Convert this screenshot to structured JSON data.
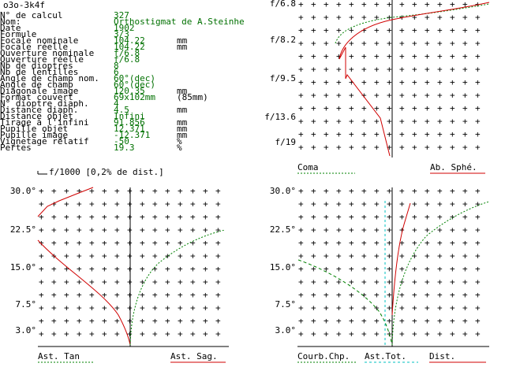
{
  "window_title": "o3o-3k4f",
  "info_rows": [
    {
      "label": "N° de calcul",
      "value": "327",
      "unit": ""
    },
    {
      "label": "Nom:",
      "value": "Orthostigmat de A.Steinhe",
      "unit": ""
    },
    {
      "label": "Date",
      "value": "1902",
      "unit": ""
    },
    {
      "label": "Formule",
      "value": "3/3",
      "unit": ""
    },
    {
      "label": "Focale nominale",
      "value": "104.22",
      "unit": "mm"
    },
    {
      "label": "Focale réelle",
      "value": "104.22",
      "unit": "mm"
    },
    {
      "label": "Ouverture nominale",
      "value": "f/6.8",
      "unit": ""
    },
    {
      "label": "Ouverture réelle",
      "value": "f/6.8",
      "unit": ""
    },
    {
      "label": "Nb de dioptres",
      "value": "8",
      "unit": ""
    },
    {
      "label": "Nb de lentilles",
      "value": "6",
      "unit": ""
    },
    {
      "label": "Angle de champ nom.",
      "value": "60°(dec)",
      "unit": ""
    },
    {
      "label": "Angle de champ",
      "value": "60°(dec)",
      "unit": ""
    },
    {
      "label": "Diagonale image",
      "value": "120.35",
      "unit": "mm"
    },
    {
      "label": "Format couvert",
      "value": "69x102mm",
      "unit": "(85mm)"
    },
    {
      "label": "N° dioptre diaph.",
      "value": "4",
      "unit": ""
    },
    {
      "label": "Distance diaph.",
      "value": "4.5",
      "unit": "mm"
    },
    {
      "label": "Distance objet",
      "value": "Infini",
      "unit": ""
    },
    {
      "label": "Tirage à l'infini",
      "value": "91.856",
      "unit": "mm"
    },
    {
      "label": "Pupille objet",
      "value": "12.371",
      "unit": "mm"
    },
    {
      "label": "Pupille image",
      "value": "-12.371",
      "unit": "mm"
    },
    {
      "label": "Vignetage relatif",
      "value": "-50",
      "unit": "%"
    },
    {
      "label": "Pertes",
      "value": "19.3",
      "unit": "%"
    }
  ],
  "spherical": {
    "y_ticks": [
      "f/6.8",
      "f/8.2",
      "f/9.5",
      "f/13.6",
      "f/19"
    ],
    "legend_left": "Coma",
    "legend_right": "Ab. Sphé."
  },
  "distortion_note": "f/1000 [0,2% de dist.]",
  "astig": {
    "y_ticks": [
      "30.0°",
      "22.5°",
      "15.0°",
      "7.5°",
      "3.0°"
    ],
    "legend_left": "Ast. Tan",
    "legend_right": "Ast. Sag."
  },
  "field": {
    "y_ticks": [
      "30.0°",
      "22.5°",
      "15.0°",
      "7.5°",
      "3.0°"
    ],
    "legend_1": "Courb.Chp.",
    "legend_2": "Ast.Tot.",
    "legend_3": "Dist."
  },
  "colors": {
    "red": "#d00000",
    "green": "#008000",
    "cyan": "#00c0c0",
    "text_value": "#007000"
  }
}
